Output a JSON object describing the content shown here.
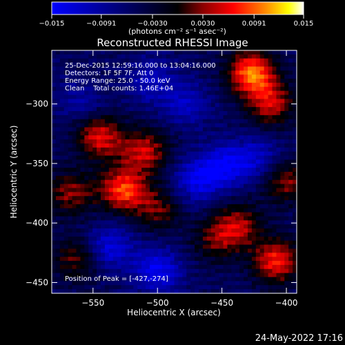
{
  "chart_data": {
    "type": "heatmap",
    "title": "Reconstructed RHESSI Image",
    "xlabel": "Heliocentric X (arcsec)",
    "ylabel": "Heliocentric Y (arcsec)",
    "xlim": [
      -582,
      -392
    ],
    "ylim": [
      -459,
      -255
    ],
    "x_ticks": [
      -550,
      -500,
      -450,
      -400
    ],
    "x_tick_labels": [
      "−550",
      "−500",
      "−450",
      "−400"
    ],
    "y_ticks": [
      -300,
      -350,
      -400,
      -450
    ],
    "y_tick_labels": [
      "−300",
      "−350",
      "−400",
      "−450"
    ],
    "colorbar": {
      "min": -0.015,
      "max": 0.015,
      "ticks": [
        -0.015,
        -0.0091,
        -0.003,
        0.003,
        0.0091,
        0.015
      ],
      "tick_labels": [
        "−0.015",
        "−0.0091",
        "−0.0030",
        "0.0030",
        "0.0091",
        "0.015"
      ],
      "unit_label": "(photons cm⁻² s⁻¹ asec⁻²)",
      "colors": [
        "#0000ff",
        "#000000",
        "#8b0000",
        "#ff0000",
        "#ff8c00",
        "#ffff00",
        "#ffffff"
      ]
    },
    "annotations": [
      "25-Dec-2015 12:59:16.000 to 13:04:16.000",
      "Detectors: 1F 5F 7F, Att 0",
      "Energy Range: 25.0 - 50.0 keV",
      "Clean    Total counts: 1.46E+04"
    ],
    "peak_label": "Position of Peak = [-427,-274]",
    "peak": [
      -427,
      -274
    ],
    "sources": [
      {
        "x": -527,
        "y": -372,
        "value": 0.013
      },
      {
        "x": -545,
        "y": -328,
        "value": 0.011
      },
      {
        "x": -510,
        "y": -340,
        "value": 0.01
      },
      {
        "x": -500,
        "y": -388,
        "value": 0.007
      },
      {
        "x": -568,
        "y": -375,
        "value": 0.008
      },
      {
        "x": -563,
        "y": -430,
        "value": 0.007
      },
      {
        "x": -427,
        "y": -274,
        "value": 0.015
      },
      {
        "x": -412,
        "y": -300,
        "value": 0.01
      },
      {
        "x": -400,
        "y": -365,
        "value": 0.008
      },
      {
        "x": -408,
        "y": -432,
        "value": 0.012
      },
      {
        "x": -438,
        "y": -402,
        "value": 0.009
      },
      {
        "x": -455,
        "y": -415,
        "value": 0.006
      },
      {
        "x": -478,
        "y": -300,
        "value": -0.006
      },
      {
        "x": -448,
        "y": -352,
        "value": -0.009
      },
      {
        "x": -470,
        "y": -365,
        "value": -0.008
      },
      {
        "x": -500,
        "y": -440,
        "value": -0.009
      },
      {
        "x": -537,
        "y": -420,
        "value": -0.008
      },
      {
        "x": -505,
        "y": -280,
        "value": -0.006
      },
      {
        "x": -422,
        "y": -345,
        "value": -0.006
      },
      {
        "x": -560,
        "y": -298,
        "value": -0.004
      }
    ]
  },
  "footer_date": "24-May-2022 17:16"
}
